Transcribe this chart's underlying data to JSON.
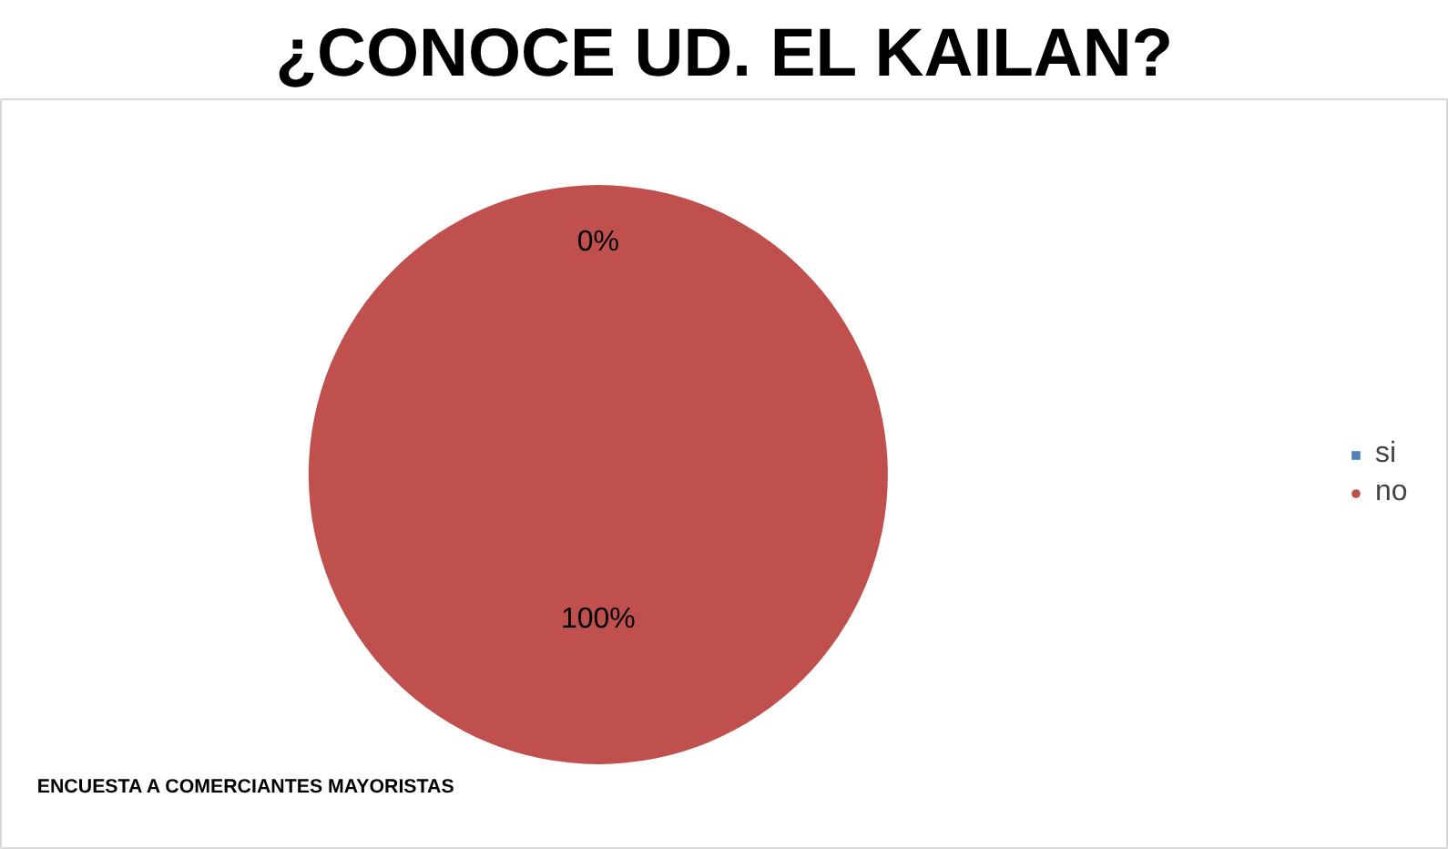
{
  "chart_data": {
    "type": "pie",
    "title": "¿CONOCE UD. EL KAILAN?",
    "categories": [
      "si",
      "no"
    ],
    "values": [
      0,
      100
    ],
    "colors": [
      "#4f81bd",
      "#c0504d"
    ],
    "data_labels": true,
    "value_labels": [
      "0%",
      "100%"
    ],
    "legend": "right",
    "annotations": [
      "ENCUESTA A COMERCIANTES MAYORISTAS"
    ]
  }
}
